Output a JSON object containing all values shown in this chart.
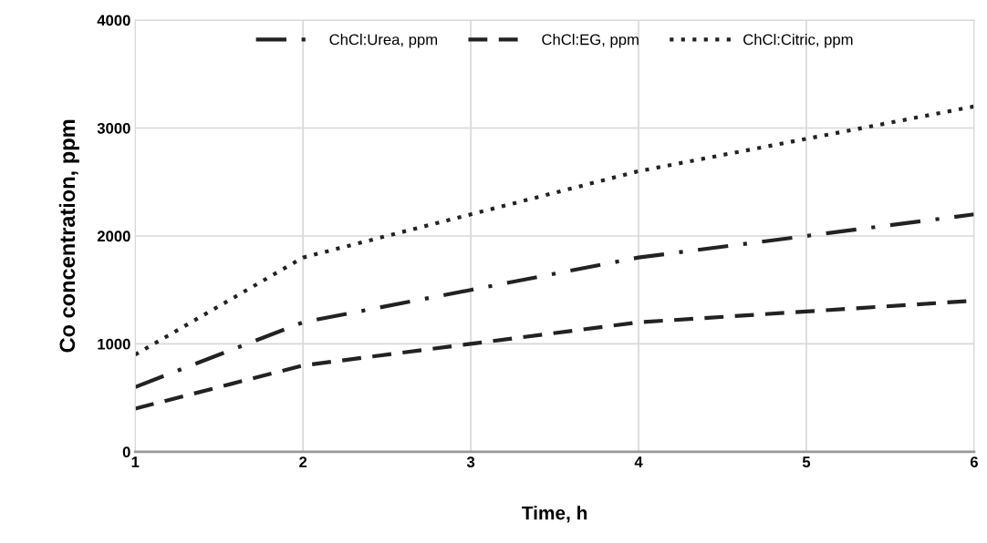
{
  "chart_data": {
    "type": "line",
    "xlabel": "Time, h",
    "ylabel": "Co concentration, ppm",
    "x": [
      1,
      2,
      3,
      4,
      5,
      6
    ],
    "series": [
      {
        "name": "ChCl:Urea, ppm",
        "color": "#222222",
        "line_style": "dashdot",
        "values": [
          600,
          1200,
          1500,
          1800,
          2000,
          2200
        ]
      },
      {
        "name": "ChCl:EG, ppm",
        "color": "#222222",
        "line_style": "dashed",
        "values": [
          400,
          800,
          1000,
          1200,
          1300,
          1400
        ]
      },
      {
        "name": "ChCl:Citric, ppm",
        "color": "#222222",
        "line_style": "dotted",
        "values": [
          900,
          1800,
          2200,
          2600,
          2900,
          3200
        ]
      }
    ],
    "xlim": [
      1,
      6
    ],
    "xticks": [
      1,
      2,
      3,
      4,
      5,
      6
    ],
    "ylim": [
      0,
      4000
    ],
    "yticks": [
      0,
      1000,
      2000,
      3000,
      4000
    ],
    "grid": true,
    "legend": "top",
    "marker": "none"
  }
}
